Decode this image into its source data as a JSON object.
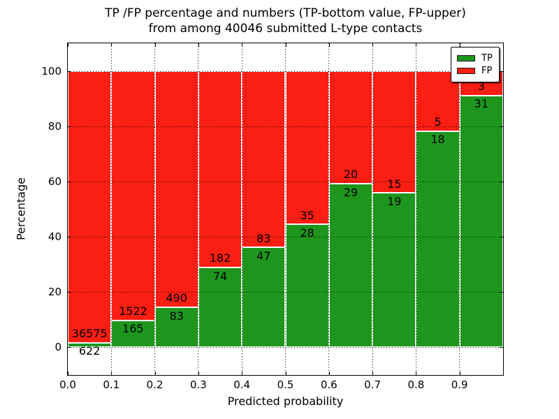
{
  "figure": {
    "title_line1": "TP /FP percentage and numbers (TP-bottom value, FP-upper)",
    "title_line2": "from among 40046 submitted L-type contacts"
  },
  "axes": {
    "xlabel": "Predicted probability",
    "ylabel": "Percentage",
    "xticks": [
      "0.0",
      "0.1",
      "0.2",
      "0.3",
      "0.4",
      "0.5",
      "0.6",
      "0.7",
      "0.8",
      "0.9"
    ],
    "yticks": [
      "0",
      "20",
      "40",
      "60",
      "80",
      "100"
    ],
    "xlim": [
      0.0,
      1.0
    ],
    "ylim": [
      -10,
      110
    ],
    "grid_style": "dotted-black"
  },
  "legend": {
    "position": "upper-right",
    "entries": [
      {
        "label": "TP",
        "color": "#1e961e"
      },
      {
        "label": "FP",
        "color": "#fa1e13"
      }
    ]
  },
  "chart_data": {
    "type": "bar",
    "stacked": true,
    "normalized_to": 100,
    "total_contacts": 40046,
    "title": "TP /FP percentage and numbers (TP-bottom value, FP-upper) from among 40046 submitted L-type contacts",
    "xlabel": "Predicted probability",
    "ylabel": "Percentage",
    "ylim": [
      -10,
      110
    ],
    "categories": [
      "0.0-0.1",
      "0.1-0.2",
      "0.2-0.3",
      "0.3-0.4",
      "0.4-0.5",
      "0.5-0.6",
      "0.6-0.7",
      "0.7-0.8",
      "0.8-0.9",
      "0.9-1.0"
    ],
    "series": [
      {
        "name": "TP",
        "color": "#1e961e",
        "counts": [
          622,
          165,
          83,
          74,
          47,
          28,
          29,
          19,
          18,
          31
        ]
      },
      {
        "name": "FP",
        "color": "#fa1e13",
        "counts": [
          36575,
          1522,
          490,
          182,
          83,
          35,
          20,
          15,
          5,
          3
        ]
      }
    ],
    "tp_percent": [
      1.67,
      9.78,
      14.49,
      28.91,
      36.15,
      44.44,
      59.18,
      55.88,
      78.26,
      91.18
    ],
    "label_offset_pct": 3.2
  }
}
